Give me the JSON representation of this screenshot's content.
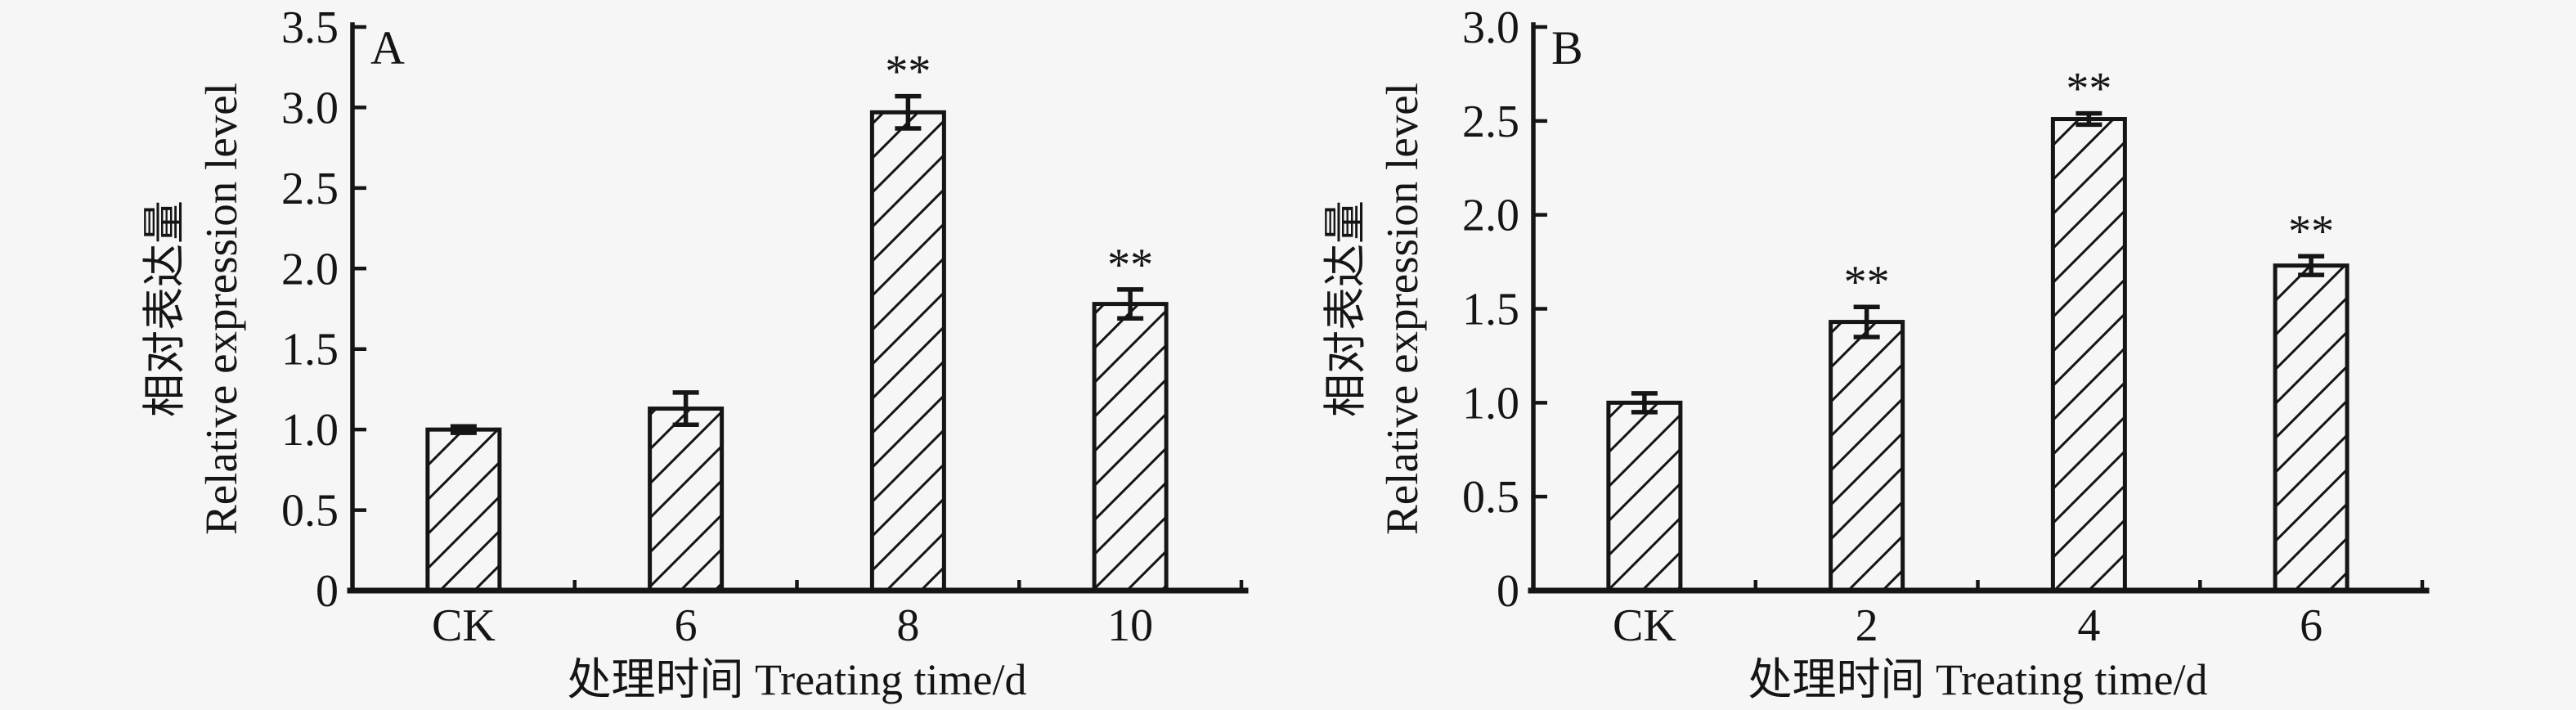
{
  "figure": {
    "background_color": "#f6f6f6",
    "ink_color": "#151515",
    "bar_fill_color": "#f6f6f6",
    "hatch_style": "black diagonal hatch (/)"
  },
  "chart_data": [
    {
      "type": "bar",
      "panel_label": "A",
      "categories": [
        "CK",
        "6",
        "8",
        "10"
      ],
      "values": [
        1.0,
        1.13,
        2.97,
        1.78
      ],
      "errors": [
        0.02,
        0.1,
        0.1,
        0.09
      ],
      "significance": [
        "",
        "",
        "**",
        "**"
      ],
      "title": "",
      "xlabel": "处理时间 Treating time/d",
      "ylabel_line1": "相对表达量",
      "ylabel_line2": "Relative expression level",
      "ylim": [
        0,
        3.5
      ],
      "ytick_step": 0.5,
      "ytick_labels": [
        "0",
        "0.5",
        "1.0",
        "1.5",
        "2.0",
        "2.5",
        "3.0",
        "3.5"
      ],
      "grid": false,
      "legend_position": "none"
    },
    {
      "type": "bar",
      "panel_label": "B",
      "categories": [
        "CK",
        "2",
        "4",
        "6"
      ],
      "values": [
        1.0,
        1.43,
        2.51,
        1.73
      ],
      "errors": [
        0.05,
        0.08,
        0.03,
        0.05
      ],
      "significance": [
        "",
        "**",
        "**",
        "**"
      ],
      "title": "",
      "xlabel": "处理时间 Treating time/d",
      "ylabel_line1": "相对表达量",
      "ylabel_line2": "Relative expression level",
      "ylim": [
        0,
        3.0
      ],
      "ytick_step": 0.5,
      "ytick_labels": [
        "0",
        "0.5",
        "1.0",
        "1.5",
        "2.0",
        "2.5",
        "3.0"
      ],
      "grid": false,
      "legend_position": "none"
    }
  ]
}
